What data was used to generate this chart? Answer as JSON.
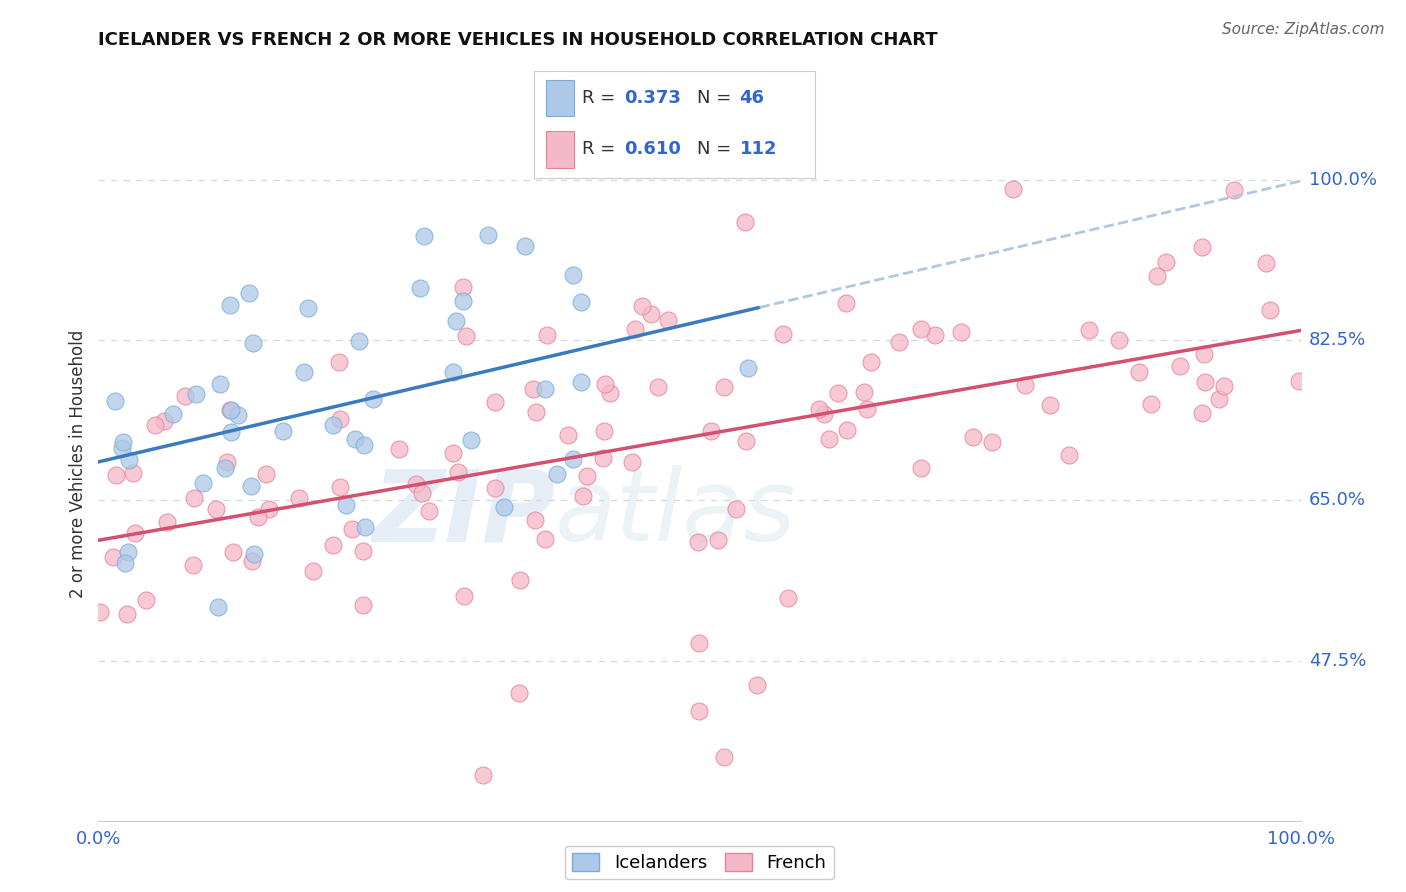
{
  "title": "ICELANDER VS FRENCH 2 OR MORE VEHICLES IN HOUSEHOLD CORRELATION CHART",
  "source": "Source: ZipAtlas.com",
  "ylabel": "2 or more Vehicles in Household",
  "xlim": [
    0.0,
    100.0
  ],
  "ylim": [
    30.0,
    108.0
  ],
  "yticks": [
    47.5,
    65.0,
    82.5,
    100.0
  ],
  "xticks": [
    0.0,
    100.0
  ],
  "blue_color": "#adc8e8",
  "blue_edge": "#7aacda",
  "pink_color": "#f5b8c8",
  "pink_edge": "#e8809a",
  "trend_blue": "#3a7bbf",
  "trend_pink": "#d45070",
  "dashed_color": "#b0c8e0",
  "R_blue": 0.373,
  "N_blue": 46,
  "R_pink": 0.61,
  "N_pink": 112,
  "legend_label_blue": "Icelanders",
  "legend_label_pink": "French",
  "watermark_zip": "ZIP",
  "watermark_atlas": "atlas",
  "accent_color": "#3366cc",
  "grid_color": "#d0d8e0",
  "title_fontsize": 13,
  "tick_fontsize": 13
}
